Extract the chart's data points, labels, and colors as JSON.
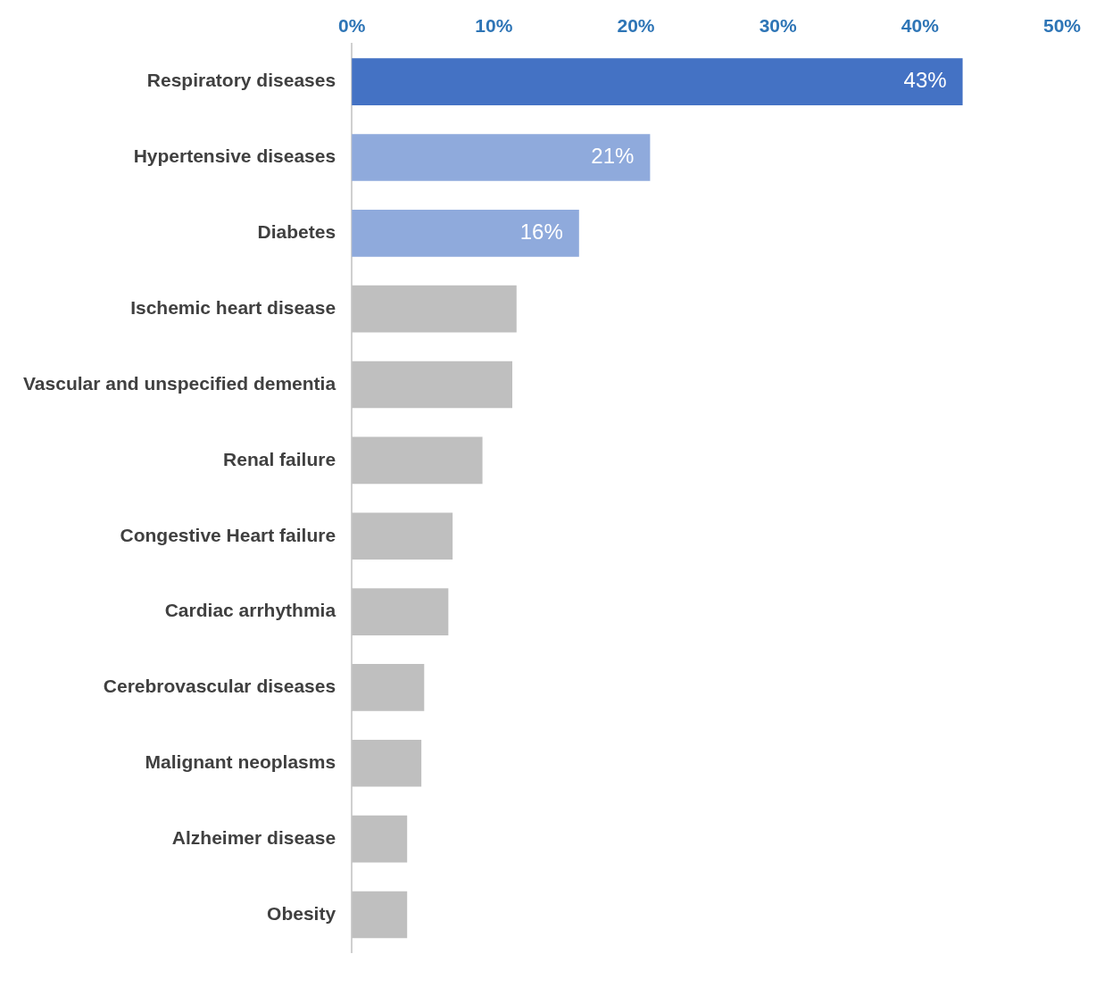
{
  "chart_data": {
    "type": "bar",
    "orientation": "horizontal",
    "categories": [
      "Respiratory diseases",
      "Hypertensive diseases",
      "Diabetes",
      "Ischemic heart disease",
      "Vascular and unspecified dementia",
      "Renal failure",
      "Congestive Heart failure",
      "Cardiac arrhythmia",
      "Cerebrovascular diseases",
      "Malignant neoplasms",
      "Alzheimer disease",
      "Obesity"
    ],
    "values": [
      43,
      21,
      16,
      11.6,
      11.3,
      9.2,
      7.1,
      6.8,
      5.1,
      4.9,
      3.9,
      3.9
    ],
    "colors": [
      "#4472c4",
      "#8faadc",
      "#8faadc",
      "#bfbfbf",
      "#bfbfbf",
      "#bfbfbf",
      "#bfbfbf",
      "#bfbfbf",
      "#bfbfbf",
      "#bfbfbf",
      "#bfbfbf",
      "#bfbfbf"
    ],
    "value_labels": [
      "43%",
      "21%",
      "16%",
      null,
      null,
      null,
      null,
      null,
      null,
      null,
      null,
      null
    ],
    "xlim": [
      0,
      50
    ],
    "xticks": [
      {
        "value": 0,
        "label": "0%"
      },
      {
        "value": 10,
        "label": "10%"
      },
      {
        "value": 20,
        "label": "20%"
      },
      {
        "value": 30,
        "label": "30%"
      },
      {
        "value": 40,
        "label": "40%"
      },
      {
        "value": 50,
        "label": "50%"
      }
    ],
    "grid": false,
    "legend": false
  }
}
